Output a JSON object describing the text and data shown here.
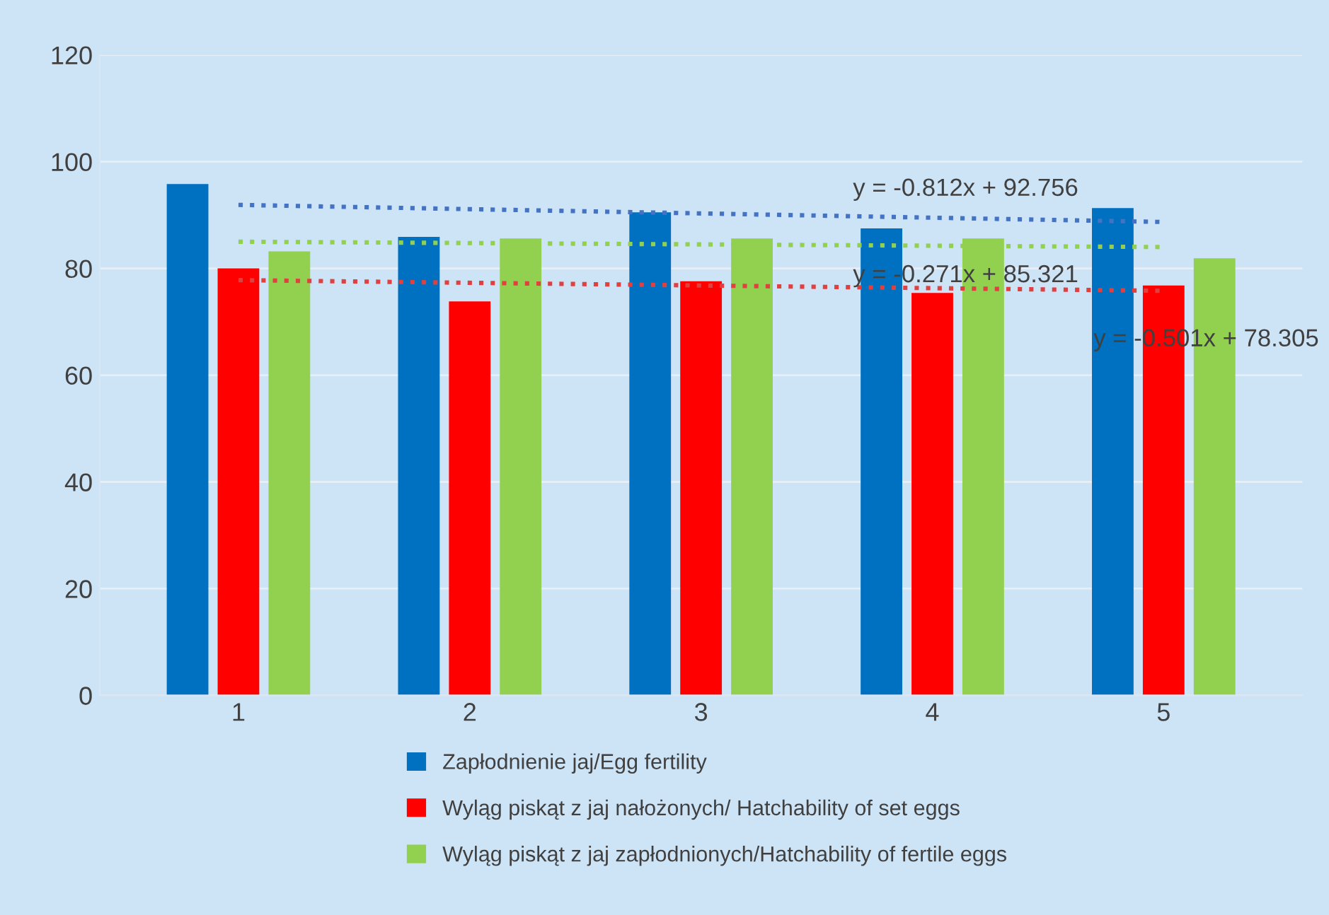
{
  "chart_data": {
    "type": "bar",
    "categories": [
      "1",
      "2",
      "3",
      "4",
      "5"
    ],
    "series": [
      {
        "name": "Zapłodnienie jaj/Egg fertility",
        "color": "#0070c0",
        "values": [
          95.8,
          85.9,
          90.5,
          87.5,
          91.3
        ]
      },
      {
        "name": "Wyląg piskąt z jaj nałożonych/ Hatchability of set eggs",
        "color": "#ff0000",
        "values": [
          80.0,
          73.8,
          77.6,
          75.4,
          76.8
        ]
      },
      {
        "name": "Wyląg piskąt z jaj zapłodnionych/Hatchability of fertile eggs",
        "color": "#92d050",
        "values": [
          83.2,
          85.6,
          85.6,
          85.6,
          81.9
        ]
      },
      {
        "type": "line",
        "line_style": "dotted",
        "color": "#4472c4",
        "x": [
          "1",
          "5"
        ],
        "values": [
          91.9,
          88.7
        ]
      },
      {
        "type": "line",
        "line_style": "dotted",
        "color": "#e04040",
        "x": [
          "1",
          "5"
        ],
        "values": [
          77.8,
          75.8
        ]
      },
      {
        "type": "line",
        "line_style": "dotted",
        "color": "#92d050",
        "x": [
          "1",
          "5"
        ],
        "values": [
          85.0,
          84.0
        ]
      }
    ],
    "ylim": [
      0,
      120
    ],
    "yticks": [
      0,
      20,
      40,
      60,
      80,
      100,
      120
    ],
    "grid": "y",
    "legend": "bottom",
    "annotations": [
      "y = -0.812x + 92.756",
      "y = -0.271x + 85.321",
      "y = -0.501x + 78.305"
    ]
  }
}
